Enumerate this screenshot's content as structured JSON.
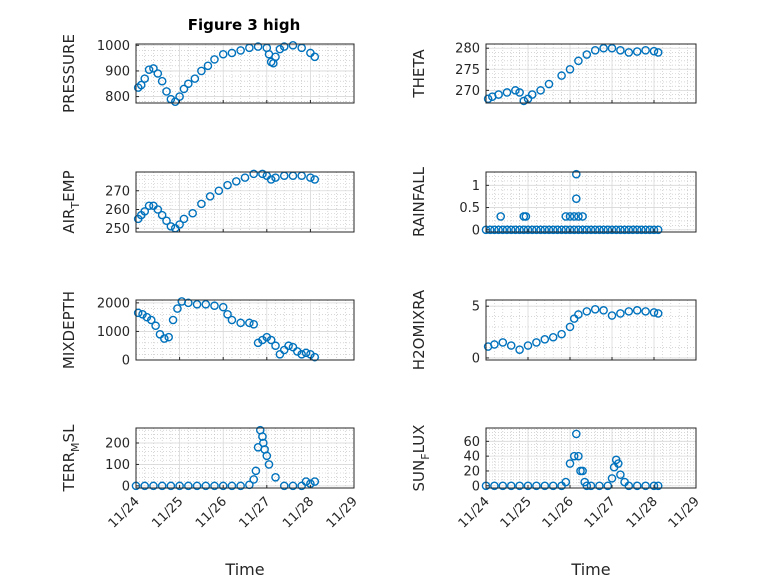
{
  "title": "Figure 3 high",
  "colors": {
    "marker": "#0072BD",
    "axis": "#262626",
    "grid": "#bdbdbd"
  },
  "chart_data": [
    {
      "type": "scatter",
      "id": "pressure",
      "ylabel": "PRESSURE",
      "yticks": [
        "800",
        "900",
        "1000"
      ],
      "ylim": [
        775,
        1005
      ],
      "grid": true,
      "marker": "open-circle",
      "series": [
        {
          "x": [
            0.05,
            0.12,
            0.2,
            0.3,
            0.4,
            0.5,
            0.6,
            0.7,
            0.8,
            0.9,
            1.0,
            1.1,
            1.2,
            1.35,
            1.5,
            1.65,
            1.8,
            2.0,
            2.2,
            2.4,
            2.6,
            2.8,
            3.0,
            3.05,
            3.1,
            3.15,
            3.2,
            3.3,
            3.4,
            3.6,
            3.8,
            4.0,
            4.1
          ],
          "y": [
            835,
            845,
            870,
            905,
            910,
            890,
            860,
            820,
            790,
            780,
            800,
            830,
            850,
            870,
            900,
            920,
            945,
            965,
            970,
            980,
            990,
            995,
            990,
            965,
            935,
            930,
            955,
            985,
            995,
            1000,
            990,
            970,
            955
          ]
        }
      ]
    },
    {
      "type": "scatter",
      "id": "theta",
      "ylabel": "THETA",
      "yticks": [
        "270",
        "275",
        "280"
      ],
      "ylim": [
        267,
        281
      ],
      "grid": true,
      "marker": "open-circle",
      "series": [
        {
          "x": [
            0.05,
            0.15,
            0.3,
            0.5,
            0.7,
            0.8,
            0.9,
            1.0,
            1.1,
            1.3,
            1.5,
            1.8,
            2.0,
            2.2,
            2.4,
            2.6,
            2.8,
            3.0,
            3.2,
            3.4,
            3.6,
            3.8,
            4.0,
            4.1
          ],
          "y": [
            268,
            268.5,
            269,
            269.5,
            270,
            269.5,
            267.5,
            268,
            269,
            270,
            271.5,
            273.5,
            275,
            277,
            278.5,
            279.5,
            280,
            280,
            279.5,
            279,
            279.2,
            279.5,
            279.3,
            279
          ]
        }
      ]
    },
    {
      "type": "scatter",
      "id": "air-temp",
      "ylabel": "AIR_TEMP",
      "yticks": [
        "250",
        "260",
        "270"
      ],
      "ylim": [
        248,
        280
      ],
      "grid": true,
      "marker": "open-circle",
      "series": [
        {
          "x": [
            0.05,
            0.12,
            0.2,
            0.3,
            0.4,
            0.5,
            0.6,
            0.7,
            0.8,
            0.9,
            1.0,
            1.1,
            1.3,
            1.5,
            1.7,
            1.9,
            2.1,
            2.3,
            2.5,
            2.7,
            2.9,
            3.0,
            3.1,
            3.2,
            3.4,
            3.6,
            3.8,
            4.0,
            4.1
          ],
          "y": [
            255,
            257,
            259,
            262,
            262,
            260,
            257,
            254,
            251,
            250,
            252,
            255,
            258,
            263,
            267,
            270,
            273,
            275,
            277,
            279,
            279,
            278,
            276,
            277,
            278,
            278,
            278,
            277,
            276
          ]
        }
      ]
    },
    {
      "type": "scatter",
      "id": "rainfall",
      "ylabel": "RAINFALL",
      "yticks": [
        "0",
        "0.5",
        "1"
      ],
      "ylim": [
        -0.05,
        1.3
      ],
      "grid": true,
      "marker": "open-circle",
      "series": [
        {
          "x": [
            0,
            0.1,
            0.2,
            0.3,
            0.4,
            0.5,
            0.6,
            0.7,
            0.8,
            0.9,
            1.0,
            1.1,
            1.2,
            1.3,
            1.4,
            1.5,
            1.6,
            1.7,
            1.8,
            1.9,
            2.0,
            2.1,
            2.2,
            2.3,
            2.4,
            2.5,
            2.6,
            2.7,
            2.8,
            2.9,
            3.0,
            3.1,
            3.2,
            3.3,
            3.4,
            3.5,
            3.6,
            3.7,
            3.8,
            3.9,
            4.0,
            4.1,
            0.35,
            0.9,
            0.95,
            1.9,
            2.0,
            2.1,
            2.15,
            2.15,
            2.2,
            2.3
          ],
          "y": [
            0,
            0,
            0,
            0,
            0,
            0,
            0,
            0,
            0,
            0,
            0,
            0,
            0,
            0,
            0,
            0,
            0,
            0,
            0,
            0,
            0,
            0,
            0,
            0,
            0,
            0,
            0,
            0,
            0,
            0,
            0,
            0,
            0,
            0,
            0,
            0,
            0,
            0,
            0,
            0,
            0,
            0,
            0.3,
            0.3,
            0.3,
            0.3,
            0.3,
            0.3,
            0.7,
            1.25,
            0.3,
            0.3
          ]
        }
      ]
    },
    {
      "type": "scatter",
      "id": "mixdepth",
      "ylabel": "MIXDEPTH",
      "yticks": [
        "0",
        "1000",
        "2000"
      ],
      "ylim": [
        0,
        2100
      ],
      "grid": true,
      "marker": "open-circle",
      "series": [
        {
          "x": [
            0.05,
            0.15,
            0.25,
            0.35,
            0.45,
            0.55,
            0.65,
            0.75,
            0.85,
            0.95,
            1.05,
            1.2,
            1.4,
            1.6,
            1.8,
            2.0,
            2.1,
            2.2,
            2.4,
            2.6,
            2.7,
            2.8,
            2.9,
            3.0,
            3.1,
            3.2,
            3.3,
            3.4,
            3.5,
            3.6,
            3.7,
            3.8,
            3.9,
            4.0,
            4.1
          ],
          "y": [
            1650,
            1600,
            1500,
            1400,
            1200,
            900,
            750,
            800,
            1400,
            1800,
            2050,
            2000,
            1950,
            1950,
            1900,
            1850,
            1600,
            1400,
            1300,
            1300,
            1250,
            600,
            700,
            800,
            700,
            500,
            200,
            350,
            500,
            450,
            300,
            200,
            250,
            200,
            100
          ]
        }
      ]
    },
    {
      "type": "scatter",
      "id": "h2omixra",
      "ylabel": "H2OMIXRA",
      "yticks": [
        "0",
        "5"
      ],
      "ylim": [
        -0.2,
        5.6
      ],
      "grid": true,
      "marker": "open-circle",
      "series": [
        {
          "x": [
            0.05,
            0.2,
            0.4,
            0.6,
            0.8,
            1.0,
            1.2,
            1.4,
            1.6,
            1.8,
            2.0,
            2.1,
            2.2,
            2.4,
            2.6,
            2.8,
            3.0,
            3.2,
            3.4,
            3.6,
            3.8,
            4.0,
            4.1
          ],
          "y": [
            1.1,
            1.3,
            1.5,
            1.2,
            0.8,
            1.2,
            1.5,
            1.8,
            2.0,
            2.3,
            3.0,
            3.8,
            4.2,
            4.5,
            4.7,
            4.6,
            4.1,
            4.3,
            4.5,
            4.6,
            4.5,
            4.4,
            4.3
          ]
        }
      ]
    },
    {
      "type": "scatter",
      "id": "terr-msl",
      "ylabel": "TERR_MSL",
      "yticks": [
        "0",
        "100",
        "200"
      ],
      "ylim": [
        -10,
        270
      ],
      "grid": true,
      "marker": "open-circle",
      "series": [
        {
          "x": [
            0,
            0.2,
            0.4,
            0.6,
            0.8,
            1.0,
            1.2,
            1.4,
            1.6,
            1.8,
            2.0,
            2.2,
            2.4,
            2.6,
            2.7,
            2.75,
            2.8,
            2.85,
            2.9,
            2.92,
            2.95,
            3.0,
            3.05,
            3.2,
            3.4,
            3.6,
            3.8,
            3.9,
            4.0,
            4.1
          ],
          "y": [
            0,
            0,
            0,
            0,
            0,
            0,
            0,
            0,
            0,
            0,
            0,
            0,
            0,
            5,
            30,
            70,
            180,
            260,
            230,
            200,
            170,
            140,
            100,
            40,
            0,
            0,
            0,
            20,
            10,
            20
          ]
        }
      ]
    },
    {
      "type": "scatter",
      "id": "sun-flux",
      "ylabel": "SUN_FLUX",
      "yticks": [
        "0",
        "20",
        "40",
        "60"
      ],
      "ylim": [
        -3,
        78
      ],
      "grid": true,
      "marker": "open-circle",
      "series": [
        {
          "x": [
            0,
            0.2,
            0.4,
            0.6,
            0.8,
            1.0,
            1.2,
            1.4,
            1.6,
            1.8,
            1.9,
            2.0,
            2.1,
            2.15,
            2.2,
            2.25,
            2.3,
            2.35,
            2.4,
            2.5,
            2.7,
            2.9,
            3.0,
            3.05,
            3.1,
            3.15,
            3.2,
            3.3,
            3.4,
            3.6,
            3.8,
            4.0,
            4.1
          ],
          "y": [
            0,
            0,
            0,
            0,
            0,
            0,
            0,
            0,
            0,
            0,
            5,
            30,
            40,
            70,
            40,
            20,
            20,
            5,
            0,
            0,
            0,
            0,
            10,
            25,
            35,
            30,
            15,
            5,
            0,
            0,
            0,
            0,
            0
          ]
        }
      ]
    }
  ],
  "x_axis": {
    "label": "Time",
    "ticks": [
      "11/24",
      "11/25",
      "11/26",
      "11/27",
      "11/28",
      "11/29"
    ],
    "xlim": [
      "11/24",
      "11/29"
    ]
  }
}
